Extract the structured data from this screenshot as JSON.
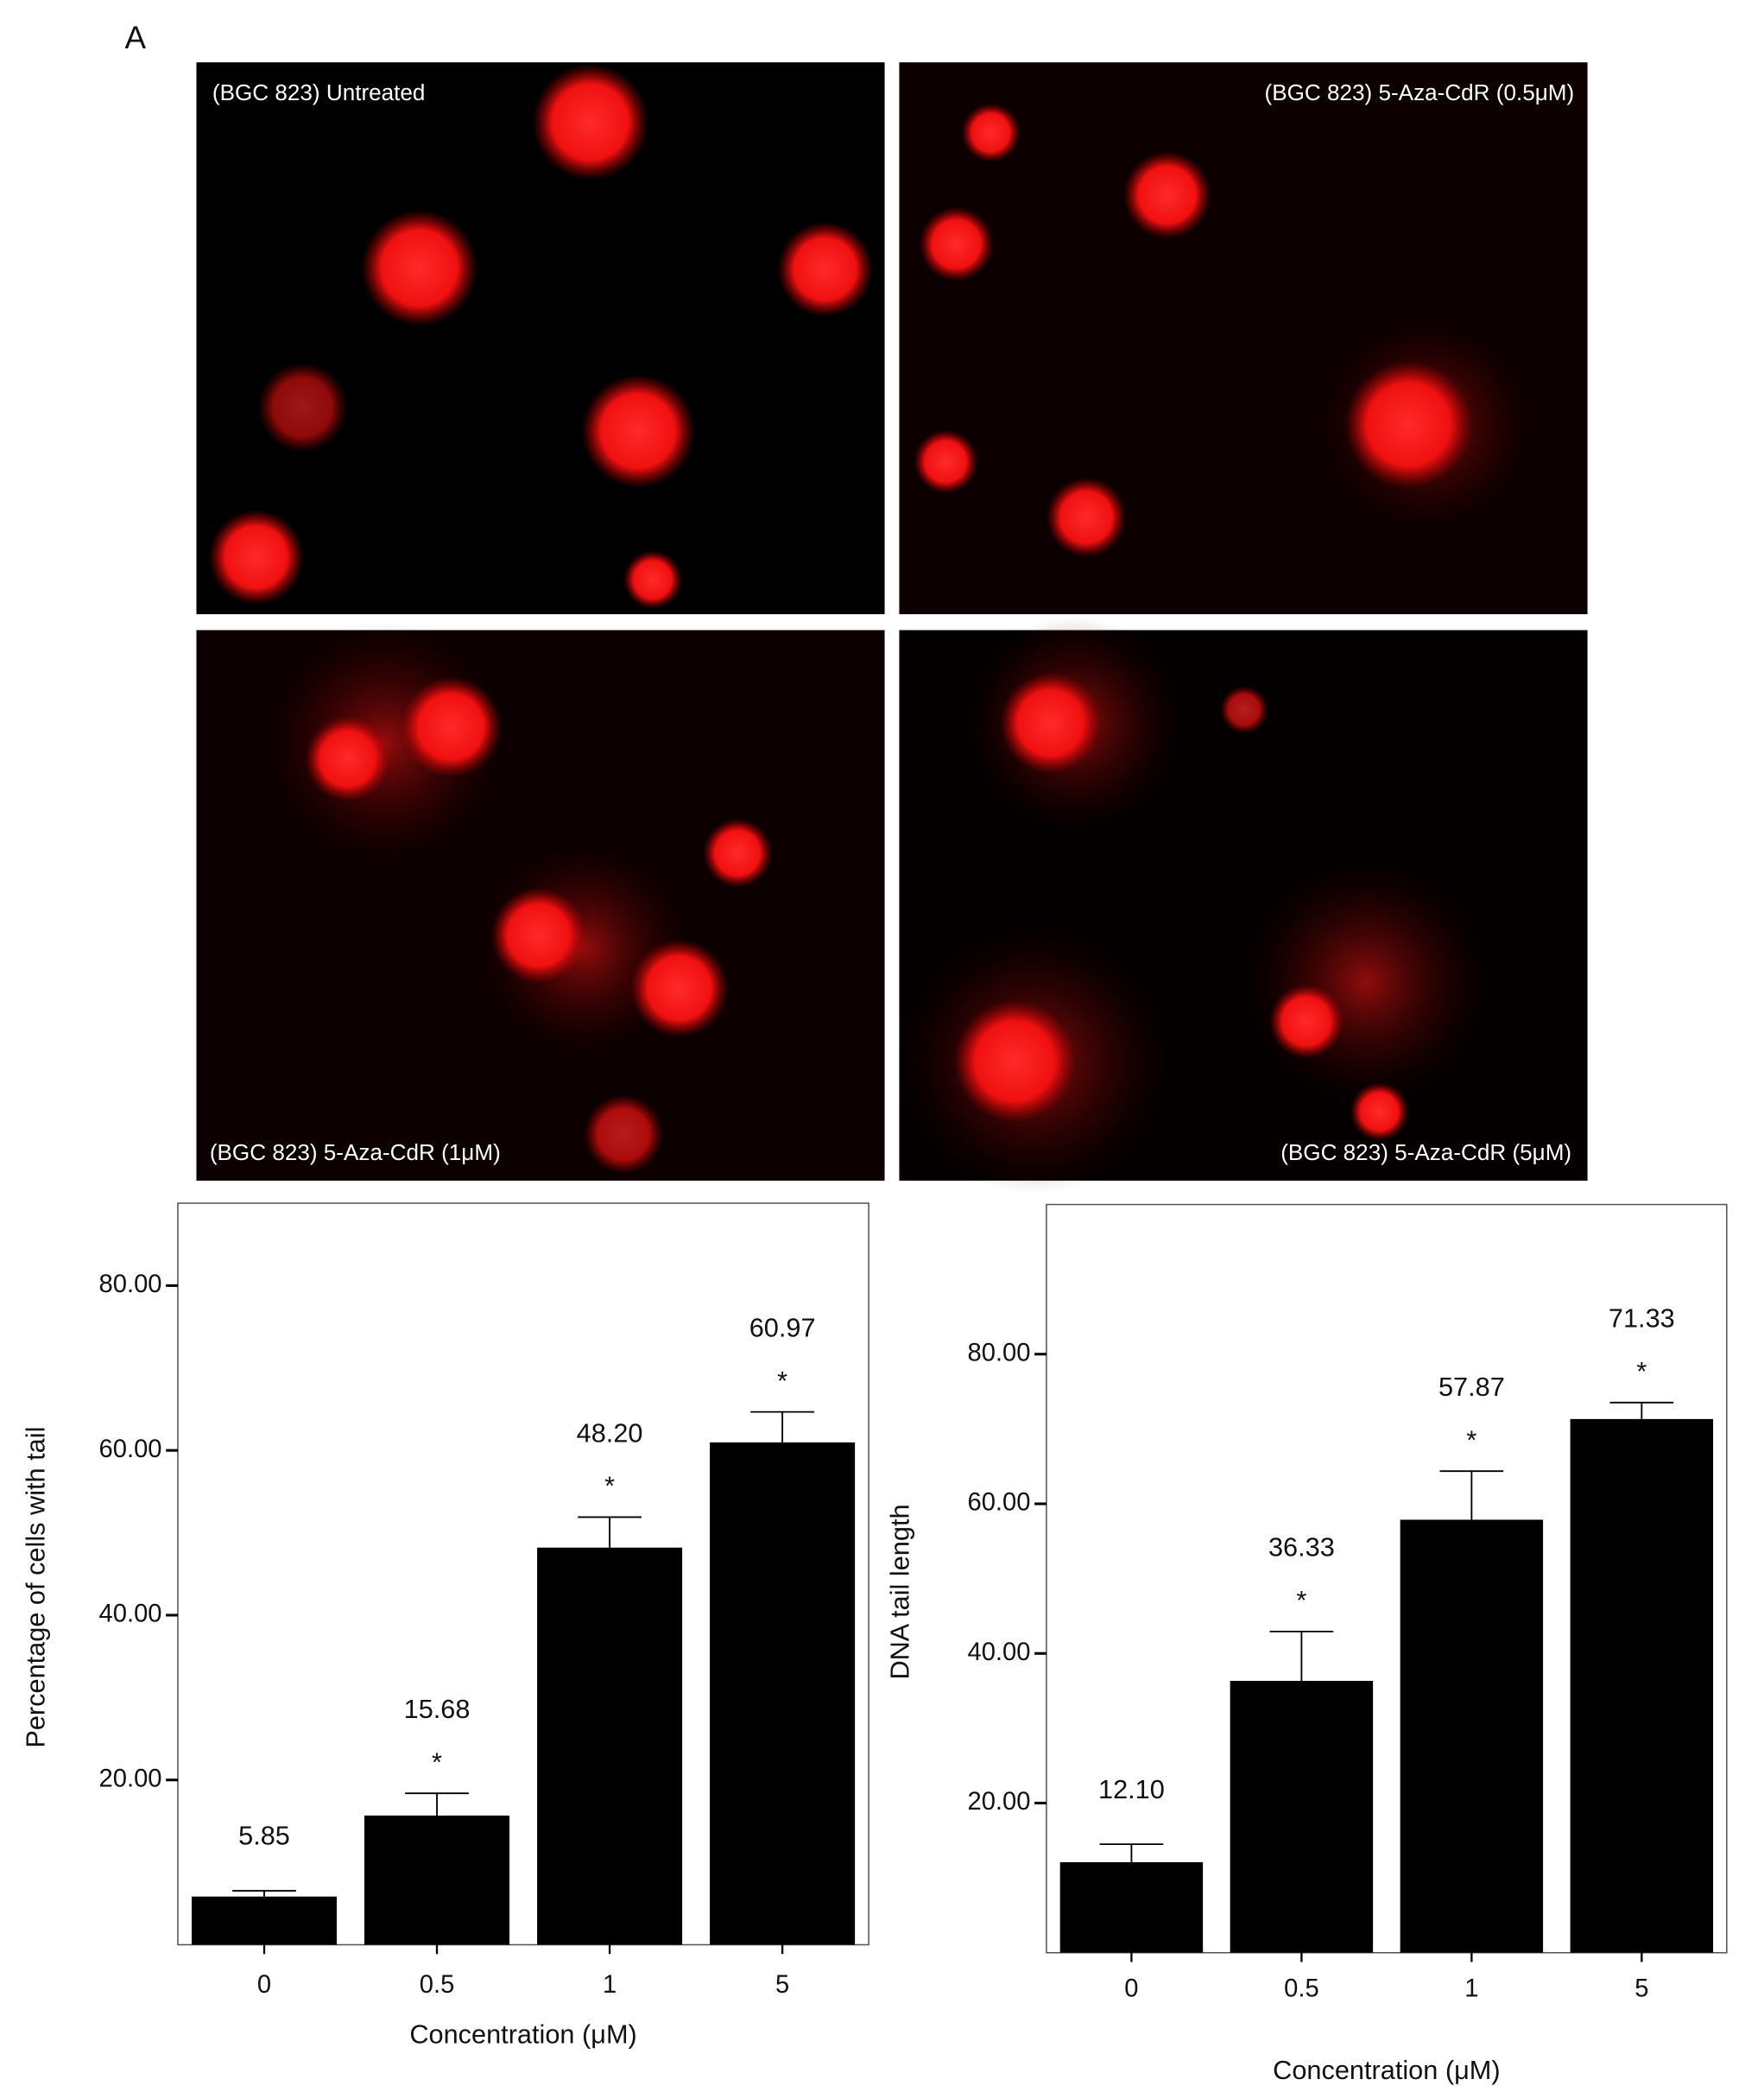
{
  "panel_label": "A",
  "images": [
    {
      "caption": "(BGC 823) Untreated"
    },
    {
      "caption": "(BGC 823) 5-Aza-CdR (0.5μM)"
    },
    {
      "caption": "(BGC 823) 5-Aza-CdR (1μM)"
    },
    {
      "caption": "(BGC 823) 5-Aza-CdR (5μM)"
    }
  ],
  "chart_data": [
    {
      "type": "bar",
      "xlabel": "Concentration (μM)",
      "ylabel": "Percentage of cells with tail",
      "categories": [
        "0",
        "0.5",
        "1",
        "5"
      ],
      "values": [
        5.85,
        15.68,
        48.2,
        60.97
      ],
      "value_labels": [
        "5.85",
        "15.68",
        "48.20",
        "60.97"
      ],
      "errors": [
        0.7,
        2.7,
        3.7,
        3.7
      ],
      "significance": [
        null,
        "*",
        "*",
        "*"
      ],
      "color": "#000000",
      "ylim": [
        0,
        90
      ],
      "yticks": [
        {
          "value": 20,
          "label": "20.00"
        },
        {
          "value": 40,
          "label": "40.00"
        },
        {
          "value": 60,
          "label": "60.00"
        },
        {
          "value": 80,
          "label": "80.00"
        }
      ]
    },
    {
      "type": "bar",
      "xlabel": "Concentration (μM)",
      "ylabel": "DNA tail length",
      "categories": [
        "0",
        "0.5",
        "1",
        "5"
      ],
      "values": [
        12.1,
        36.33,
        57.87,
        71.33
      ],
      "value_labels": [
        "12.10",
        "36.33",
        "57.87",
        "71.33"
      ],
      "errors": [
        2.4,
        6.6,
        6.5,
        2.2
      ],
      "significance": [
        null,
        "*",
        "*",
        "*"
      ],
      "color": "#000000",
      "ylim": [
        0,
        100
      ],
      "yticks": [
        {
          "value": 20,
          "label": "20.00"
        },
        {
          "value": 40,
          "label": "40.00"
        },
        {
          "value": 60,
          "label": "60.00"
        },
        {
          "value": 80,
          "label": "80.00"
        }
      ]
    }
  ]
}
